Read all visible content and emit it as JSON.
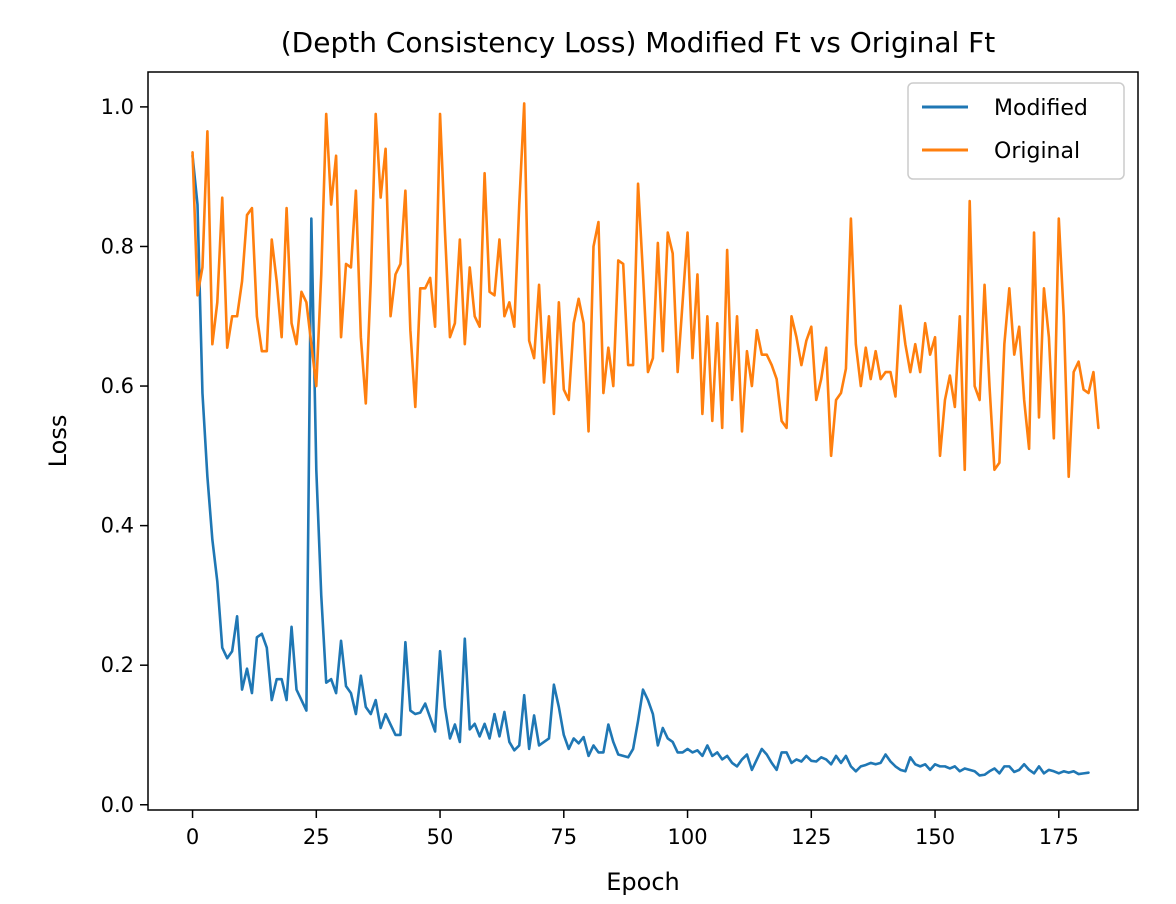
{
  "chart_data": {
    "type": "line",
    "title": "(Depth Consistency Loss) Modified Ft vs Original Ft",
    "xlabel": "Epoch",
    "ylabel": "Loss",
    "xlim": [
      -9,
      191
    ],
    "ylim": [
      -0.0075,
      1.05
    ],
    "xticks": [
      0,
      25,
      50,
      75,
      100,
      125,
      150,
      175
    ],
    "xtick_labels": [
      "0",
      "25",
      "50",
      "75",
      "100",
      "125",
      "150",
      "175"
    ],
    "yticks": [
      0.0,
      0.2,
      0.4,
      0.6,
      0.8,
      1.0
    ],
    "ytick_labels": [
      "0.0",
      "0.2",
      "0.4",
      "0.6",
      "0.8",
      "1.0"
    ],
    "grid": false,
    "legend_position": "top-right",
    "series": [
      {
        "name": "Modified",
        "color": "#1f77b4",
        "values": [
          0.93,
          0.86,
          0.59,
          0.47,
          0.38,
          0.32,
          0.225,
          0.21,
          0.22,
          0.27,
          0.165,
          0.195,
          0.16,
          0.24,
          0.245,
          0.225,
          0.15,
          0.18,
          0.18,
          0.15,
          0.255,
          0.165,
          0.15,
          0.135,
          0.84,
          0.48,
          0.3,
          0.175,
          0.18,
          0.16,
          0.235,
          0.17,
          0.16,
          0.13,
          0.185,
          0.14,
          0.13,
          0.15,
          0.11,
          0.13,
          0.115,
          0.1,
          0.1,
          0.233,
          0.135,
          0.13,
          0.132,
          0.145,
          0.125,
          0.105,
          0.22,
          0.14,
          0.095,
          0.115,
          0.09,
          0.238,
          0.108,
          0.116,
          0.098,
          0.116,
          0.095,
          0.13,
          0.098,
          0.133,
          0.09,
          0.078,
          0.085,
          0.157,
          0.08,
          0.128,
          0.085,
          0.09,
          0.095,
          0.172,
          0.14,
          0.1,
          0.08,
          0.095,
          0.088,
          0.097,
          0.07,
          0.085,
          0.075,
          0.075,
          0.115,
          0.09,
          0.072,
          0.07,
          0.068,
          0.08,
          0.12,
          0.165,
          0.15,
          0.13,
          0.085,
          0.11,
          0.095,
          0.09,
          0.075,
          0.075,
          0.08,
          0.075,
          0.078,
          0.07,
          0.085,
          0.07,
          0.075,
          0.065,
          0.07,
          0.06,
          0.055,
          0.065,
          0.072,
          0.05,
          0.065,
          0.08,
          0.072,
          0.06,
          0.05,
          0.075,
          0.075,
          0.06,
          0.065,
          0.062,
          0.07,
          0.063,
          0.062,
          0.068,
          0.065,
          0.058,
          0.07,
          0.06,
          0.07,
          0.055,
          0.048,
          0.055,
          0.057,
          0.06,
          0.058,
          0.06,
          0.072,
          0.062,
          0.055,
          0.05,
          0.048,
          0.068,
          0.058,
          0.055,
          0.058,
          0.05,
          0.058,
          0.055,
          0.055,
          0.052,
          0.055,
          0.048,
          0.052,
          0.05,
          0.048,
          0.042,
          0.043,
          0.048,
          0.052,
          0.045,
          0.055,
          0.055,
          0.047,
          0.05,
          0.058,
          0.05,
          0.045,
          0.055,
          0.045,
          0.05,
          0.048,
          0.045,
          0.048,
          0.046,
          0.048,
          0.044,
          0.045,
          0.046
        ]
      },
      {
        "name": "Original",
        "color": "#ff7f0e",
        "values": [
          0.935,
          0.73,
          0.77,
          0.965,
          0.66,
          0.72,
          0.87,
          0.655,
          0.7,
          0.7,
          0.75,
          0.845,
          0.855,
          0.7,
          0.65,
          0.65,
          0.81,
          0.75,
          0.67,
          0.855,
          0.69,
          0.66,
          0.735,
          0.72,
          0.66,
          0.6,
          0.76,
          0.99,
          0.86,
          0.93,
          0.67,
          0.775,
          0.77,
          0.88,
          0.67,
          0.575,
          0.75,
          0.99,
          0.87,
          0.94,
          0.7,
          0.76,
          0.775,
          0.88,
          0.68,
          0.57,
          0.74,
          0.74,
          0.755,
          0.685,
          0.99,
          0.82,
          0.67,
          0.69,
          0.81,
          0.66,
          0.77,
          0.7,
          0.685,
          0.905,
          0.735,
          0.73,
          0.81,
          0.7,
          0.72,
          0.685,
          0.86,
          1.005,
          0.665,
          0.64,
          0.745,
          0.605,
          0.7,
          0.56,
          0.72,
          0.595,
          0.58,
          0.69,
          0.725,
          0.69,
          0.535,
          0.8,
          0.835,
          0.59,
          0.655,
          0.6,
          0.78,
          0.775,
          0.63,
          0.63,
          0.89,
          0.76,
          0.62,
          0.64,
          0.805,
          0.65,
          0.82,
          0.79,
          0.62,
          0.72,
          0.82,
          0.64,
          0.76,
          0.56,
          0.7,
          0.55,
          0.69,
          0.54,
          0.795,
          0.58,
          0.7,
          0.535,
          0.65,
          0.6,
          0.68,
          0.645,
          0.645,
          0.63,
          0.61,
          0.55,
          0.54,
          0.7,
          0.67,
          0.63,
          0.665,
          0.685,
          0.58,
          0.61,
          0.655,
          0.5,
          0.58,
          0.59,
          0.625,
          0.84,
          0.66,
          0.6,
          0.655,
          0.61,
          0.65,
          0.61,
          0.62,
          0.62,
          0.585,
          0.715,
          0.66,
          0.62,
          0.66,
          0.62,
          0.69,
          0.645,
          0.67,
          0.5,
          0.58,
          0.615,
          0.57,
          0.7,
          0.48,
          0.865,
          0.6,
          0.58,
          0.745,
          0.6,
          0.48,
          0.49,
          0.66,
          0.74,
          0.645,
          0.685,
          0.58,
          0.51,
          0.82,
          0.555,
          0.74,
          0.67,
          0.525,
          0.84,
          0.7,
          0.47,
          0.62,
          0.635,
          0.595,
          0.59,
          0.62,
          0.54
        ]
      }
    ]
  }
}
